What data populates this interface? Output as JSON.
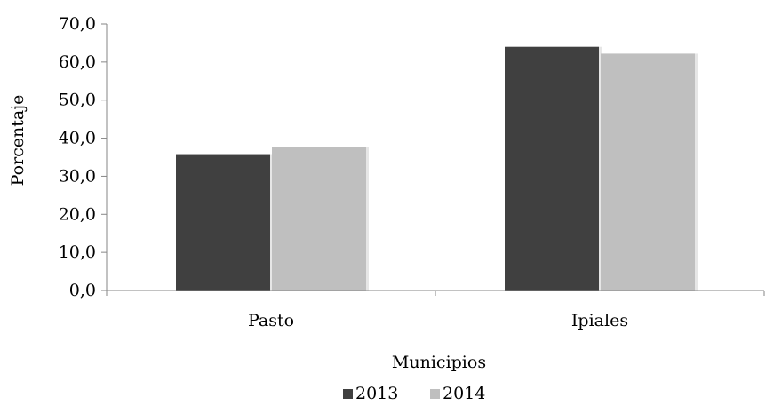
{
  "chart_data": {
    "type": "bar",
    "categories": [
      "Pasto",
      "Ipiales"
    ],
    "series": [
      {
        "name": "2013",
        "values": [
          35.8,
          64.0
        ],
        "color": "#404040"
      },
      {
        "name": "2014",
        "values": [
          37.7,
          62.2
        ],
        "color": "#bfbfbf"
      }
    ],
    "xlabel": "Municipios",
    "ylabel": "Porcentaje",
    "ylim": [
      0,
      70
    ],
    "yticks": [
      "0,0",
      "10,0",
      "20,0",
      "30,0",
      "40,0",
      "50,0",
      "60,0",
      "70,0"
    ],
    "grid": false,
    "legend_position": "bottom"
  }
}
